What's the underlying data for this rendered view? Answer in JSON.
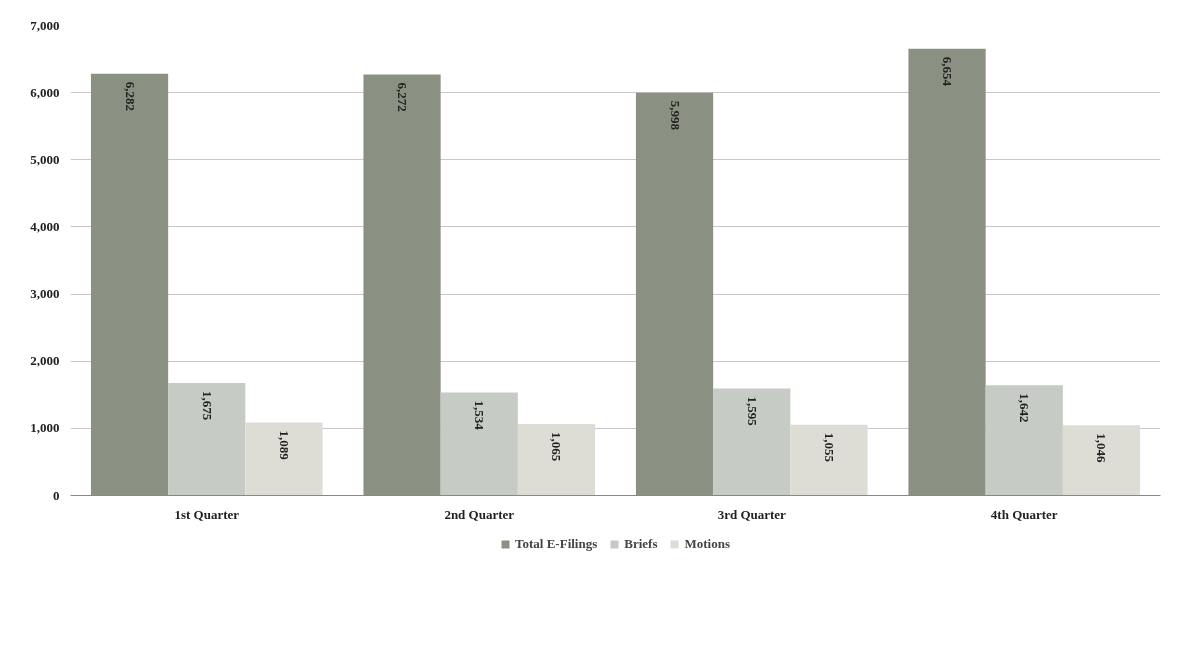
{
  "chart_data": {
    "type": "bar",
    "categories": [
      "1st Quarter",
      "2nd Quarter",
      "3rd Quarter",
      "4th Quarter"
    ],
    "series": [
      {
        "name": "Total E-Filings",
        "color": "#8a9182",
        "values": [
          6282,
          6272,
          5998,
          6654
        ],
        "value_labels": [
          "6,282",
          "6,272",
          "5,998",
          "6,654"
        ]
      },
      {
        "name": "Briefs",
        "color": "#c6cbc5",
        "values": [
          1675,
          1534,
          1595,
          1642
        ],
        "value_labels": [
          "1,675",
          "1,534",
          "1,595",
          "1,642"
        ]
      },
      {
        "name": "Motions",
        "color": "#dddcd5",
        "values": [
          1089,
          1065,
          1055,
          1046
        ],
        "value_labels": [
          "1,089",
          "1,065",
          "1,055",
          "1,046"
        ]
      }
    ],
    "ylim": [
      0,
      7000
    ],
    "yticks": [
      {
        "value": 0,
        "label": "0"
      },
      {
        "value": 1000,
        "label": "1,000"
      },
      {
        "value": 2000,
        "label": "2,000"
      },
      {
        "value": 3000,
        "label": "3,000"
      },
      {
        "value": 4000,
        "label": "4,000"
      },
      {
        "value": 5000,
        "label": "5,000"
      },
      {
        "value": 6000,
        "label": "6,000"
      },
      {
        "value": 7000,
        "label": "7,000"
      }
    ],
    "grid": "y",
    "legend": "bottom"
  }
}
